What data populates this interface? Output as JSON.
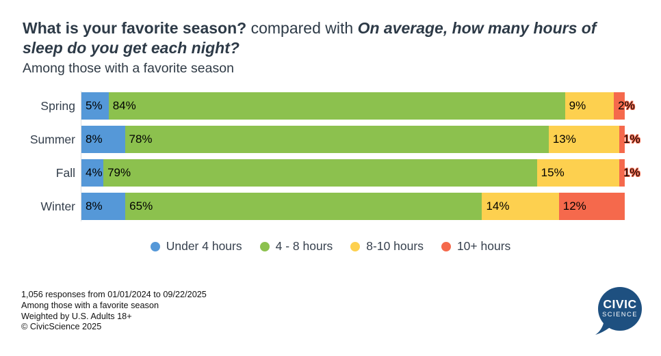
{
  "header": {
    "title_q1": "What is your favorite season?",
    "title_connector": " compared with ",
    "title_q2": "On average, how many hours of sleep do you get each night?",
    "subtitle": "Among those with a favorite season"
  },
  "chart_data": {
    "type": "bar",
    "variant": "horizontal-stacked-percent",
    "categories": [
      "Spring",
      "Summer",
      "Fall",
      "Winter"
    ],
    "series": [
      {
        "name": "Under 4 hours",
        "color": "#5598d8",
        "values": [
          5,
          8,
          4,
          8
        ]
      },
      {
        "name": "4 - 8 hours",
        "color": "#8cc14e",
        "values": [
          84,
          78,
          79,
          65
        ]
      },
      {
        "name": "8-10 hours",
        "color": "#fdd04f",
        "values": [
          9,
          13,
          15,
          14
        ]
      },
      {
        "name": "10+ hours",
        "color": "#f5694c",
        "values": [
          2,
          1,
          1,
          12
        ]
      }
    ],
    "value_suffix": "%",
    "xlim": [
      0,
      100
    ],
    "grid": false,
    "legend_position": "bottom",
    "axis_line_color": "#dcdee1",
    "data_label_color": "#000000"
  },
  "footer": {
    "lines": [
      "1,056 responses from 01/01/2024 to 09/22/2025",
      "Among those with a favorite season",
      "Weighted by U.S. Adults 18+",
      "© CivicScience 2025"
    ]
  },
  "logo": {
    "line1": "CIVIC",
    "line2": "SCIENCE",
    "color": "#1e5080",
    "text_color": "#ffffff"
  }
}
